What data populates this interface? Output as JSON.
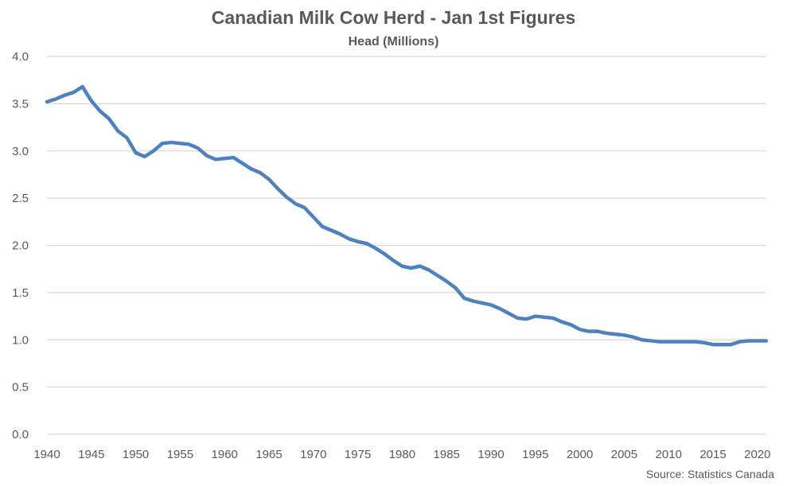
{
  "chart_data": {
    "type": "line",
    "title": "Canadian Milk Cow Herd - Jan 1st Figures",
    "subtitle": "Head (Millions)",
    "source": "Source: Statistics Canada",
    "xlabel": "",
    "ylabel": "",
    "xlim": [
      1940,
      2021
    ],
    "ylim": [
      0,
      4
    ],
    "x_ticks": [
      "1940",
      "1945",
      "1950",
      "1955",
      "1960",
      "1965",
      "1970",
      "1975",
      "1980",
      "1985",
      "1990",
      "1995",
      "2000",
      "2005",
      "2010",
      "2015",
      "2020"
    ],
    "y_ticks": [
      "0.0",
      "0.5",
      "1.0",
      "1.5",
      "2.0",
      "2.5",
      "3.0",
      "3.5",
      "4.0"
    ],
    "grid": true,
    "line_color": "#4F81BD",
    "series": [
      {
        "x": [
          1940,
          1941,
          1942,
          1943,
          1944,
          1945,
          1946,
          1947,
          1948,
          1949,
          1950,
          1951,
          1952,
          1953,
          1954,
          1955,
          1956,
          1957,
          1958,
          1959,
          1960,
          1961,
          1962,
          1963,
          1964,
          1965,
          1966,
          1967,
          1968,
          1969,
          1970,
          1971,
          1972,
          1973,
          1974,
          1975,
          1976,
          1977,
          1978,
          1979,
          1980,
          1981,
          1982,
          1983,
          1984,
          1985,
          1986,
          1987,
          1988,
          1989,
          1990,
          1991,
          1992,
          1993,
          1994,
          1995,
          1996,
          1997,
          1998,
          1999,
          2000,
          2001,
          2002,
          2003,
          2004,
          2005,
          2006,
          2007,
          2008,
          2009,
          2010,
          2011,
          2012,
          2013,
          2014,
          2015,
          2016,
          2017,
          2018,
          2019,
          2020,
          2021
        ],
        "values": [
          3.52,
          3.55,
          3.59,
          3.62,
          3.68,
          3.53,
          3.42,
          3.34,
          3.21,
          3.14,
          2.98,
          2.94,
          3.0,
          3.08,
          3.09,
          3.08,
          3.07,
          3.03,
          2.95,
          2.91,
          2.92,
          2.93,
          2.87,
          2.81,
          2.77,
          2.7,
          2.6,
          2.51,
          2.44,
          2.4,
          2.3,
          2.2,
          2.16,
          2.12,
          2.07,
          2.04,
          2.02,
          1.97,
          1.91,
          1.84,
          1.78,
          1.76,
          1.78,
          1.74,
          1.68,
          1.62,
          1.55,
          1.44,
          1.41,
          1.39,
          1.37,
          1.33,
          1.28,
          1.23,
          1.22,
          1.25,
          1.24,
          1.23,
          1.19,
          1.16,
          1.11,
          1.09,
          1.09,
          1.07,
          1.06,
          1.05,
          1.03,
          1.0,
          0.99,
          0.98,
          0.98,
          0.98,
          0.98,
          0.98,
          0.97,
          0.95,
          0.95,
          0.95,
          0.98,
          0.99,
          0.99,
          0.99
        ]
      }
    ]
  }
}
